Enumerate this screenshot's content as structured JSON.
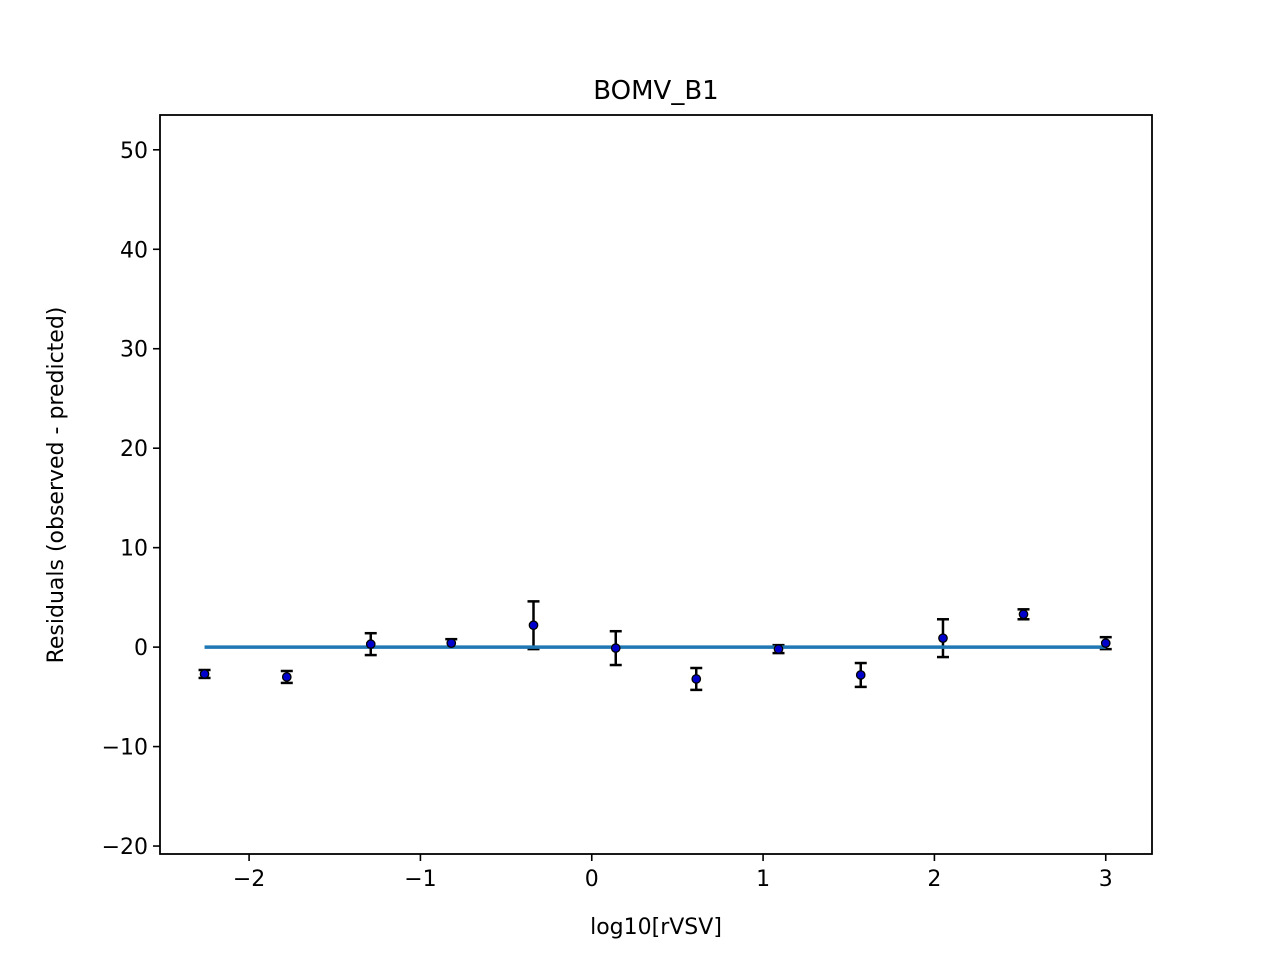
{
  "chart_data": {
    "type": "scatter",
    "title": "BOMV_B1",
    "xlabel": "log10[rVSV]",
    "ylabel": "Residuals (observed - predicted)",
    "xlim": [
      -2.52,
      3.27
    ],
    "ylim": [
      -20.8,
      53.5
    ],
    "xticks": [
      -2,
      -1,
      0,
      1,
      2,
      3
    ],
    "xtick_labels": [
      "−2",
      "−1",
      "0",
      "1",
      "2",
      "3"
    ],
    "yticks": [
      -20,
      -10,
      0,
      10,
      20,
      30,
      40,
      50
    ],
    "ytick_labels": [
      "−20",
      "−10",
      "0",
      "10",
      "20",
      "30",
      "40",
      "50"
    ],
    "grid": false,
    "legend": false,
    "series": [
      {
        "type": "errorbar",
        "marker_color": "#0000cc",
        "marker_edge_color": "#000000",
        "error_color": "#000000",
        "points": [
          {
            "x": -2.26,
            "y": -2.7,
            "err": 0.4
          },
          {
            "x": -1.78,
            "y": -3.0,
            "err": 0.6
          },
          {
            "x": -1.29,
            "y": 0.3,
            "err": 1.1
          },
          {
            "x": -0.82,
            "y": 0.4,
            "err": 0.4
          },
          {
            "x": -0.34,
            "y": 2.2,
            "err": 2.4
          },
          {
            "x": 0.14,
            "y": -0.1,
            "err": 1.7
          },
          {
            "x": 0.61,
            "y": -3.2,
            "err": 1.1
          },
          {
            "x": 1.09,
            "y": -0.2,
            "err": 0.4
          },
          {
            "x": 1.57,
            "y": -2.8,
            "err": 1.2
          },
          {
            "x": 2.05,
            "y": 0.9,
            "err": 1.9
          },
          {
            "x": 2.52,
            "y": 3.3,
            "err": 0.5
          },
          {
            "x": 3.0,
            "y": 0.4,
            "err": 0.6
          }
        ]
      },
      {
        "type": "line",
        "color": "#1f77b4",
        "x": [
          -2.26,
          3.0
        ],
        "y": [
          0,
          0
        ]
      }
    ]
  }
}
